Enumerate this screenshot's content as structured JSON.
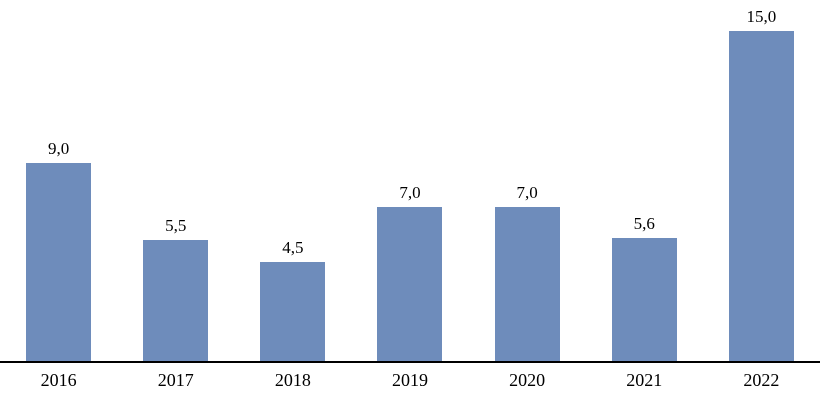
{
  "chart_data": {
    "type": "bar",
    "categories": [
      "2016",
      "2017",
      "2018",
      "2019",
      "2020",
      "2021",
      "2022"
    ],
    "values": [
      9.0,
      5.5,
      4.5,
      7.0,
      7.0,
      5.6,
      15.0
    ],
    "value_labels": [
      "9,0",
      "5,5",
      "4,5",
      "7,0",
      "7,0",
      "5,6",
      "15,0"
    ],
    "title": "",
    "xlabel": "",
    "ylabel": "",
    "ylim": [
      0,
      16.5
    ],
    "grid": false,
    "legend": false,
    "bar_color": "#6E8CBB",
    "axis_line_color": "#000000",
    "label_color": "#000000"
  }
}
